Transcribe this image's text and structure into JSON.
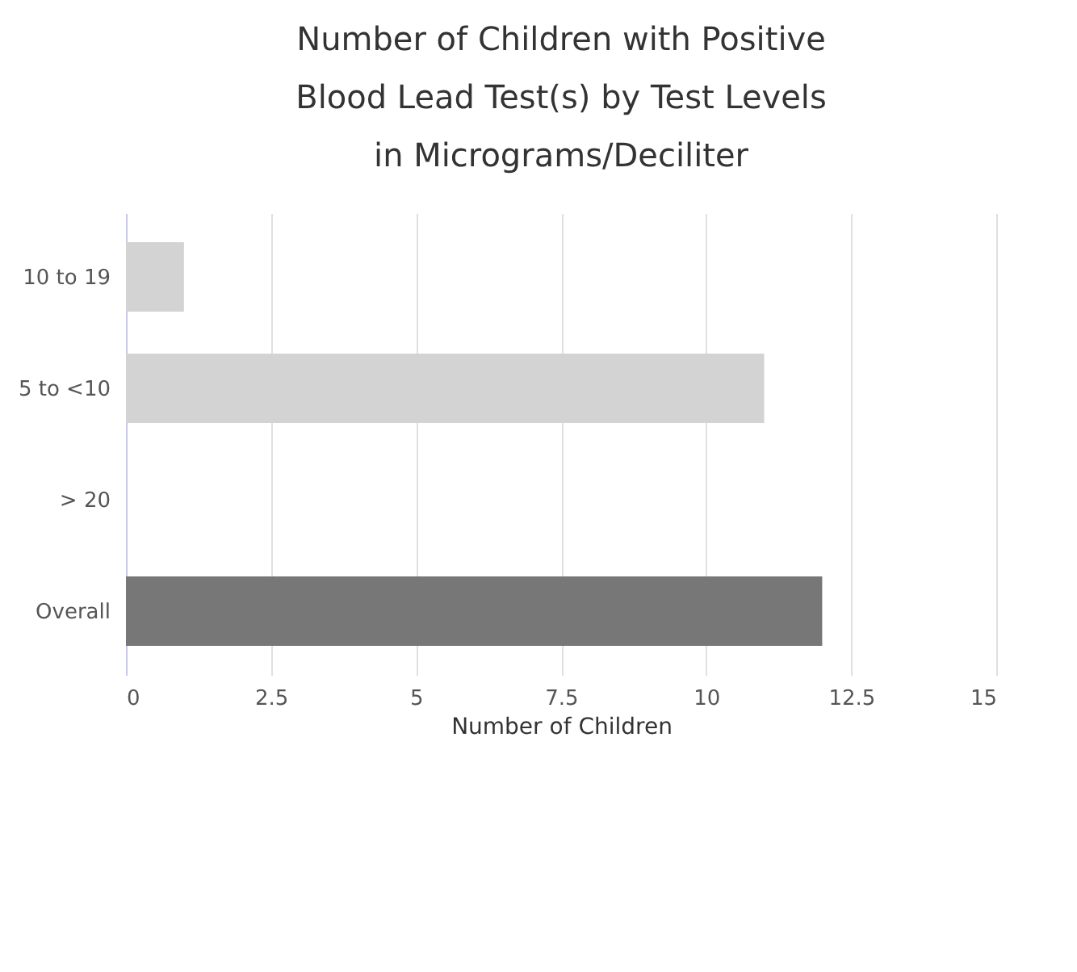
{
  "chart_data": {
    "type": "bar",
    "orientation": "horizontal",
    "title": "Number of Children with Positive Blood Lead Test(s) by Test Levels in Micrograms/Deciliter",
    "xlabel": "Number of Children",
    "categories": [
      "10 to 19",
      "5 to <10",
      "> 20",
      "Overall"
    ],
    "values": [
      1,
      11,
      0,
      12
    ],
    "colors": [
      "#d3d3d3",
      "#d3d3d3",
      "#d3d3d3",
      "#777777"
    ],
    "xlim": [
      0,
      15
    ],
    "xticks": [
      0,
      2.5,
      5,
      7.5,
      10,
      12.5,
      15
    ],
    "grid": "x"
  }
}
